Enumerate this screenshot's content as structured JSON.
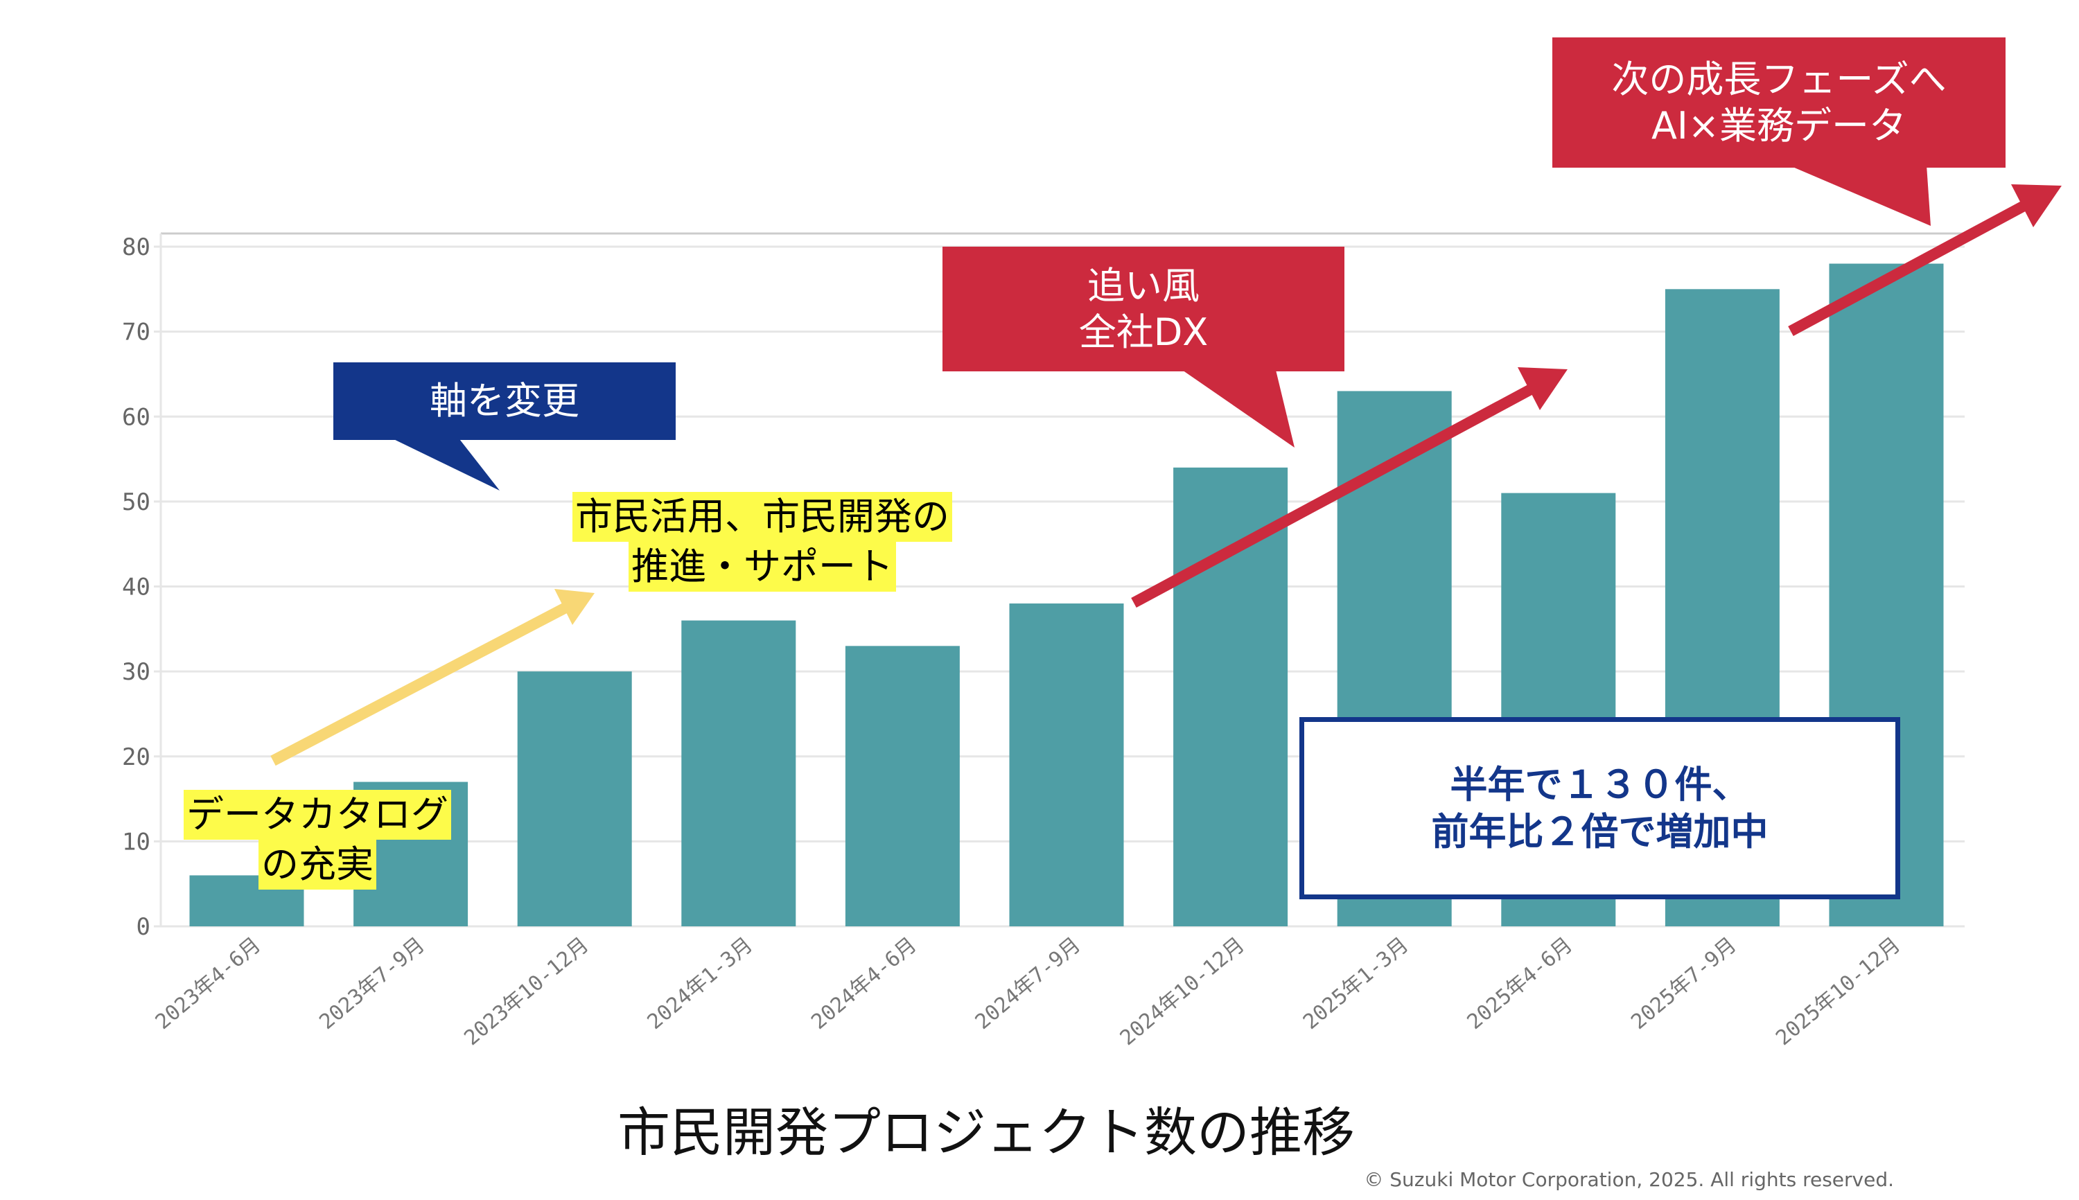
{
  "chart_data": {
    "type": "bar",
    "title": "市民開発プロジェクト数の推移",
    "xlabel": "",
    "ylabel": "",
    "ylim": [
      0,
      80
    ],
    "yticks": [
      0,
      10,
      20,
      30,
      40,
      50,
      60,
      70,
      80
    ],
    "grid": true,
    "bar_color": "#4f9ea5",
    "categories": [
      "2023年4-6月",
      "2023年7-9月",
      "2023年10-12月",
      "2024年1-3月",
      "2024年4-6月",
      "2024年7-9月",
      "2024年10-12月",
      "2025年1-3月",
      "2025年4-6月",
      "2025年7-9月",
      "2025年10-12月"
    ],
    "values": [
      6,
      17,
      30,
      36,
      33,
      38,
      54,
      63,
      51,
      75,
      78
    ]
  },
  "annotations": {
    "axis_change": "軸を変更",
    "citizen_use": [
      "市民活用、市民開発の",
      "推進・サポート"
    ],
    "data_catalog": [
      "データカタログ",
      "の充実"
    ],
    "tailwind": [
      "追い風",
      "全社DX"
    ],
    "next_phase": [
      "次の成長フェーズへ",
      "AI×業務データ"
    ],
    "growth": [
      "半年で１３０件、",
      "前年比２倍で増加中"
    ]
  },
  "colors": {
    "red": "#cc2a3e",
    "navy": "#13368a",
    "yellow_highlight": "#fdfb4a",
    "yellow_arrow": "#f8d775"
  },
  "copyright": "© Suzuki Motor Corporation, 2025. All rights reserved."
}
